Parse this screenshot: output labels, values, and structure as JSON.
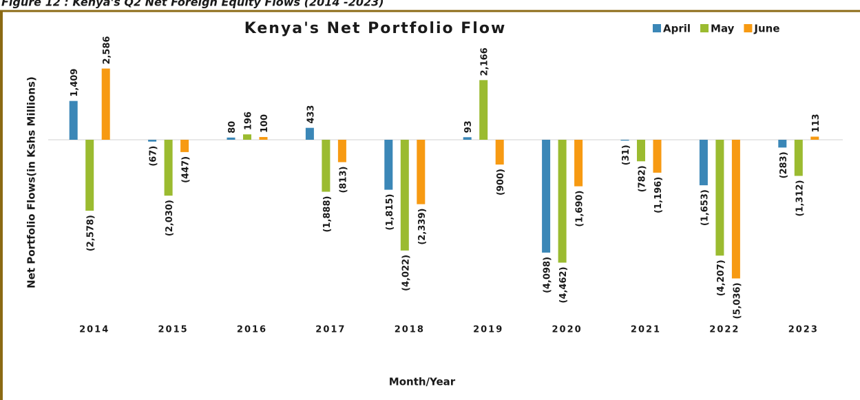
{
  "chart_data": {
    "type": "bar",
    "caption": "Figure 12 : Kenya's Q2 Net Foreign Equity Flows (2014 -2023)",
    "title": "Kenya's Net Portfolio Flow",
    "x_label": "Month/Year",
    "y_label": "Net Portfolio Flows(in Kshs Millions)",
    "categories": [
      "2014",
      "2015",
      "2016",
      "2017",
      "2018",
      "2019",
      "2020",
      "2021",
      "2022",
      "2023"
    ],
    "ylim": [
      -6300,
      3700
    ],
    "legend": "top-right",
    "series": [
      {
        "name": "April",
        "color": "#3b87b7",
        "values": [
          1409,
          -67,
          80,
          433,
          -1815,
          93,
          -4098,
          -31,
          -1653,
          -283
        ],
        "value_labels": [
          "1,409",
          "(67)",
          "80",
          "433",
          "(1,815)",
          "93",
          "(4,098)",
          "(31)",
          "(1,653)",
          "(283)"
        ]
      },
      {
        "name": "May",
        "color": "#9bbb30",
        "values": [
          -2578,
          -2030,
          196,
          -1888,
          -4022,
          2166,
          -4462,
          -782,
          -4207,
          -1312
        ],
        "value_labels": [
          "(2,578)",
          "(2,030)",
          "196",
          "(1,888)",
          "(4,022)",
          "2,166",
          "(4,462)",
          "(782)",
          "(4,207)",
          "(1,312)"
        ]
      },
      {
        "name": "June",
        "color": "#f79a12",
        "values": [
          2586,
          -447,
          100,
          -813,
          -2339,
          -900,
          -1690,
          -1196,
          -5036,
          113
        ],
        "value_labels": [
          "2,586",
          "(447)",
          "100",
          "(813)",
          "(2,339)",
          "(900)",
          "(1,690)",
          "(1,196)",
          "(5,036)",
          "113"
        ]
      }
    ]
  }
}
